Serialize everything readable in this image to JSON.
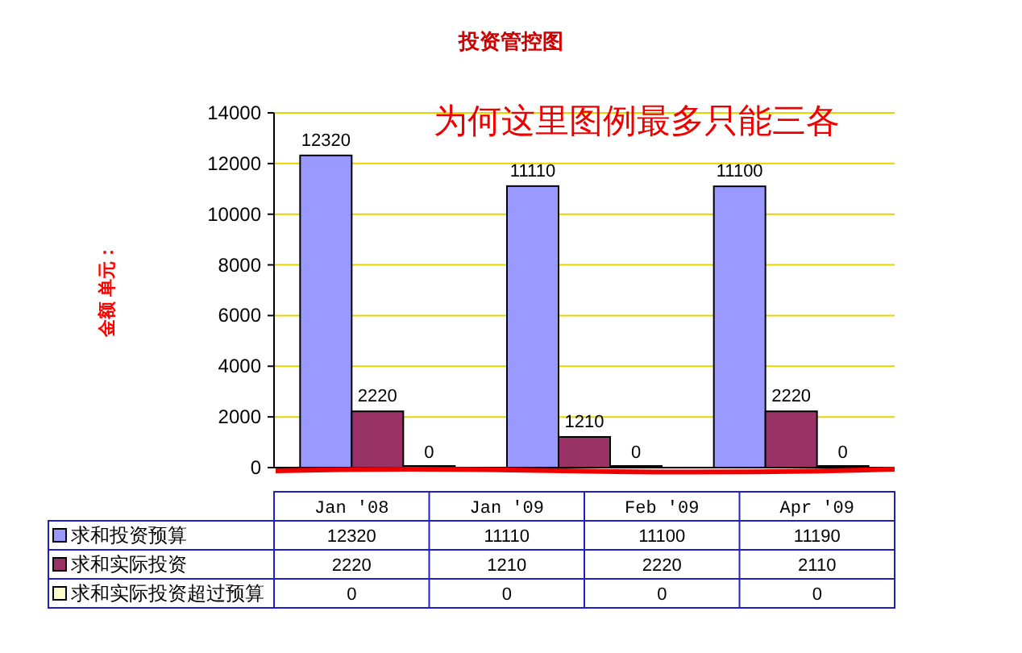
{
  "chart_data": [
    {
      "type": "bar",
      "title": "投资管控图",
      "ylabel": "金额 单元：",
      "annotations": [
        "为何这里图例最多只能三各"
      ],
      "categories": [
        null,
        null,
        null
      ],
      "series": [
        {
          "color": "#9999ff",
          "values": [
            12320,
            11110,
            11100
          ]
        },
        {
          "color": "#993366",
          "values": [
            2220,
            1210,
            2220
          ]
        },
        {
          "color": "#ffffcc",
          "values": [
            0,
            0,
            0
          ],
          "value_labels": [
            "0",
            "0",
            "0"
          ]
        }
      ],
      "ylim": [
        0,
        14000
      ],
      "yticks": [
        0,
        2000,
        4000,
        6000,
        8000,
        10000,
        12000,
        14000
      ],
      "grid": "y",
      "data_labels": true
    },
    {
      "type": "other",
      "categories": [
        "Jan '08",
        "Jan '09",
        "Feb '09",
        "Apr '09"
      ],
      "series": [
        {
          "name": "求和投资预算",
          "color": "#9999ff",
          "values": [
            12320,
            11110,
            11100,
            11190
          ]
        },
        {
          "name": "求和实际投资",
          "color": "#993366",
          "values": [
            2220,
            1210,
            2220,
            2110
          ]
        },
        {
          "name": "求和实际投资超过预算",
          "color": "#ffffcc",
          "values": [
            0,
            0,
            0,
            0
          ],
          "value_labels": [
            "0",
            "0",
            "0",
            "0"
          ]
        }
      ],
      "data_labels": true
    }
  ]
}
